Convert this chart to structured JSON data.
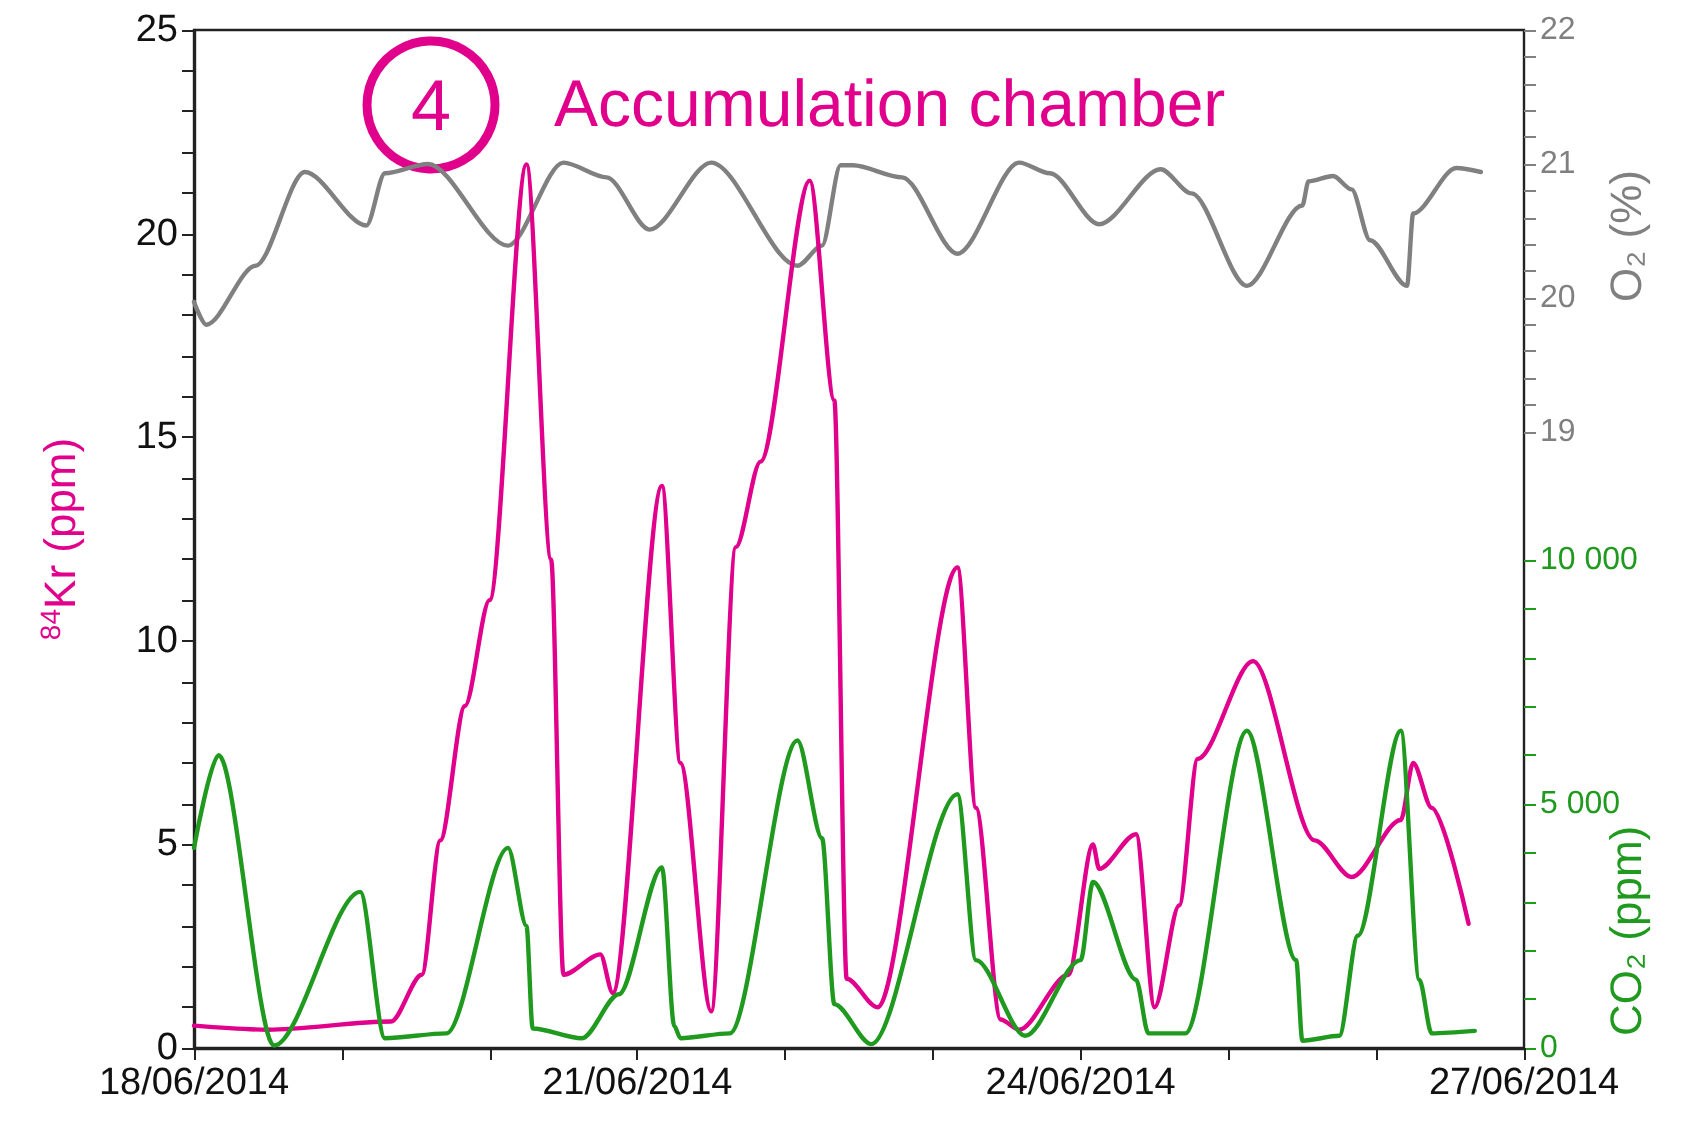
{
  "chart_data": {
    "type": "line",
    "title": "Accumulation chamber",
    "annotations": [
      "4"
    ],
    "ylabel": "$^{84}$Kr (ppm)",
    "y2label": "O₂ (%)",
    "y3label": "CO₂ (ppm)",
    "xlim": [
      "2014-06-18",
      "2014-06-27"
    ],
    "xticks": [
      {
        "value": "2014-06-18",
        "label": "18/06/2014"
      },
      {
        "value": "2014-06-19",
        "label": null
      },
      {
        "value": "2014-06-20",
        "label": null
      },
      {
        "value": "2014-06-21",
        "label": "21/06/2014"
      },
      {
        "value": "2014-06-22",
        "label": null
      },
      {
        "value": "2014-06-23",
        "label": null
      },
      {
        "value": "2014-06-24",
        "label": "24/06/2014"
      },
      {
        "value": "2014-06-25",
        "label": null
      },
      {
        "value": "2014-06-26",
        "label": null
      },
      {
        "value": "2014-06-27",
        "label": "27/06/2014"
      }
    ],
    "ylim": [
      0,
      25
    ],
    "yticks": [
      0,
      {
        "value": 1,
        "label": null
      },
      {
        "value": 2,
        "label": null
      },
      {
        "value": 3,
        "label": null
      },
      {
        "value": 4,
        "label": null
      },
      5,
      {
        "value": 6,
        "label": null
      },
      {
        "value": 7,
        "label": null
      },
      {
        "value": 8,
        "label": null
      },
      {
        "value": 9,
        "label": null
      },
      10,
      {
        "value": 11,
        "label": null
      },
      {
        "value": 12,
        "label": null
      },
      {
        "value": 13,
        "label": null
      },
      {
        "value": 14,
        "label": null
      },
      15,
      {
        "value": 16,
        "label": null
      },
      {
        "value": 17,
        "label": null
      },
      {
        "value": 18,
        "label": null
      },
      {
        "value": 19,
        "label": null
      },
      20,
      {
        "value": 21,
        "label": null
      },
      {
        "value": 22,
        "label": null
      },
      {
        "value": 23,
        "label": null
      },
      {
        "value": 24,
        "label": null
      },
      25
    ],
    "y2lim": [
      14.4,
      22
    ],
    "y2ticks": [
      19,
      {
        "value": 19.2,
        "label": null
      },
      {
        "value": 19.4,
        "label": null
      },
      {
        "value": 19.6,
        "label": null
      },
      {
        "value": 19.8,
        "label": null
      },
      20,
      {
        "value": 20.2,
        "label": null
      },
      {
        "value": 20.4,
        "label": null
      },
      {
        "value": 20.6,
        "label": null
      },
      {
        "value": 20.8,
        "label": null
      },
      21,
      {
        "value": 21.2,
        "label": null
      },
      {
        "value": 21.4,
        "label": null
      },
      {
        "value": 21.6,
        "label": null
      },
      {
        "value": 21.8,
        "label": null
      },
      22
    ],
    "y3lim": [
      0,
      20860
    ],
    "y3ticks": [
      0,
      {
        "value": 1000,
        "label": null
      },
      {
        "value": 2000,
        "label": null
      },
      {
        "value": 3000,
        "label": null
      },
      {
        "value": 4000,
        "label": null
      },
      {
        "value": 5000,
        "label": "5 000"
      },
      {
        "value": 6000,
        "label": null
      },
      {
        "value": 7000,
        "label": null
      },
      {
        "value": 8000,
        "label": null
      },
      {
        "value": 9000,
        "label": null
      },
      {
        "value": 10000,
        "label": "10 000"
      }
    ],
    "grid": false,
    "marker": "none",
    "line_style": "solid",
    "series": [
      {
        "color": "#808080",
        "axis": "y2",
        "x": [
          "2014-06-18T00:00",
          "2014-06-18T02:00",
          "2014-06-18T10:00",
          "2014-06-18T18:00",
          "2014-06-19T04:00",
          "2014-06-19T07:00",
          "2014-06-19T14:00",
          "2014-06-20T03:00",
          "2014-06-20T12:00",
          "2014-06-20T19:00",
          "2014-06-21T02:00",
          "2014-06-21T12:00",
          "2014-06-22T02:00",
          "2014-06-22T06:00",
          "2014-06-22T09:00",
          "2014-06-22T11:00",
          "2014-06-22T19:00",
          "2014-06-23T04:00",
          "2014-06-23T14:00",
          "2014-06-23T19:00",
          "2014-06-24T03:00",
          "2014-06-24T13:00",
          "2014-06-24T18:00",
          "2014-06-25T03:00",
          "2014-06-25T12:00",
          "2014-06-25T13:00",
          "2014-06-25T17:00",
          "2014-06-25T20:00",
          "2014-06-25T23:00",
          "2014-06-26T05:00",
          "2014-06-26T06:00",
          "2014-06-26T13:00",
          "2014-06-26T17:00"
        ],
        "values": [
          19.97,
          19.8,
          20.24,
          20.94,
          20.54,
          20.93,
          21.0,
          20.39,
          21.01,
          20.9,
          20.51,
          21.01,
          20.24,
          20.39,
          20.99,
          20.99,
          20.9,
          20.33,
          21.01,
          20.93,
          20.55,
          20.96,
          20.78,
          20.09,
          20.69,
          20.87,
          20.91,
          20.81,
          20.43,
          20.09,
          20.63,
          20.97,
          20.94
        ]
      },
      {
        "color": "#e0008c",
        "x": [
          "2014-06-18T00:00",
          "2014-06-18T12:00",
          "2014-06-19T08:00",
          "2014-06-19T13:00",
          "2014-06-19T16:00",
          "2014-06-19T20:00",
          "2014-06-20T00:00",
          "2014-06-20T06:00",
          "2014-06-20T10:00",
          "2014-06-20T12:00",
          "2014-06-20T18:00",
          "2014-06-20T20:00",
          "2014-06-21T04:00",
          "2014-06-21T07:00",
          "2014-06-21T12:00",
          "2014-06-21T16:00",
          "2014-06-21T20:00",
          "2014-06-22T04:00",
          "2014-06-22T08:00",
          "2014-06-22T10:00",
          "2014-06-22T15:00",
          "2014-06-23T04:00",
          "2014-06-23T07:00",
          "2014-06-23T11:00",
          "2014-06-23T14:00",
          "2014-06-23T22:00",
          "2014-06-24T02:00",
          "2014-06-24T03:00",
          "2014-06-24T09:00",
          "2014-06-24T12:00",
          "2014-06-24T16:00",
          "2014-06-24T19:00",
          "2014-06-25T04:00",
          "2014-06-25T14:00",
          "2014-06-25T20:00",
          "2014-06-26T04:00",
          "2014-06-26T06:00",
          "2014-06-26T09:00",
          "2014-06-26T15:00"
        ],
        "values": [
          0.55,
          0.45,
          0.65,
          1.8,
          5.1,
          8.4,
          11,
          21.7,
          12,
          1.8,
          2.3,
          1.35,
          13.8,
          7,
          0.9,
          12.3,
          14.4,
          21.3,
          15.9,
          1.7,
          1.0,
          11.8,
          5.9,
          0.7,
          0.45,
          1.8,
          5.0,
          4.4,
          5.25,
          1.0,
          3.5,
          7.1,
          9.5,
          5.1,
          4.2,
          5.6,
          7.0,
          5.9,
          3.05
        ]
      },
      {
        "color": "#1f9a1f",
        "axis": "y3",
        "x": [
          "2014-06-18T00:00",
          "2014-06-18T04:00",
          "2014-06-18T13:00",
          "2014-06-19T03:00",
          "2014-06-19T07:00",
          "2014-06-19T17:00",
          "2014-06-20T03:00",
          "2014-06-20T06:00",
          "2014-06-20T07:00",
          "2014-06-20T15:00",
          "2014-06-20T21:00",
          "2014-06-21T04:00",
          "2014-06-21T06:00",
          "2014-06-21T07:00",
          "2014-06-21T15:00",
          "2014-06-22T02:00",
          "2014-06-22T06:00",
          "2014-06-22T08:00",
          "2014-06-22T14:00",
          "2014-06-23T04:00",
          "2014-06-23T07:00",
          "2014-06-23T15:00",
          "2014-06-24T00:00",
          "2014-06-24T02:00",
          "2014-06-24T09:00",
          "2014-06-24T11:00",
          "2014-06-24T17:00",
          "2014-06-25T03:00",
          "2014-06-25T11:00",
          "2014-06-25T12:00",
          "2014-06-25T18:00",
          "2014-06-25T21:00",
          "2014-06-26T04:00",
          "2014-06-26T07:00",
          "2014-06-26T09:00",
          "2014-06-26T16:00"
        ],
        "values": [
          4100,
          6000,
          50,
          3200,
          200,
          300,
          4100,
          2500,
          400,
          200,
          1100,
          3700,
          450,
          200,
          300,
          6300,
          4300,
          900,
          80,
          5200,
          1800,
          250,
          1800,
          3400,
          1400,
          300,
          300,
          6500,
          1800,
          150,
          250,
          2300,
          6500,
          1400,
          300,
          350
        ]
      }
    ]
  }
}
